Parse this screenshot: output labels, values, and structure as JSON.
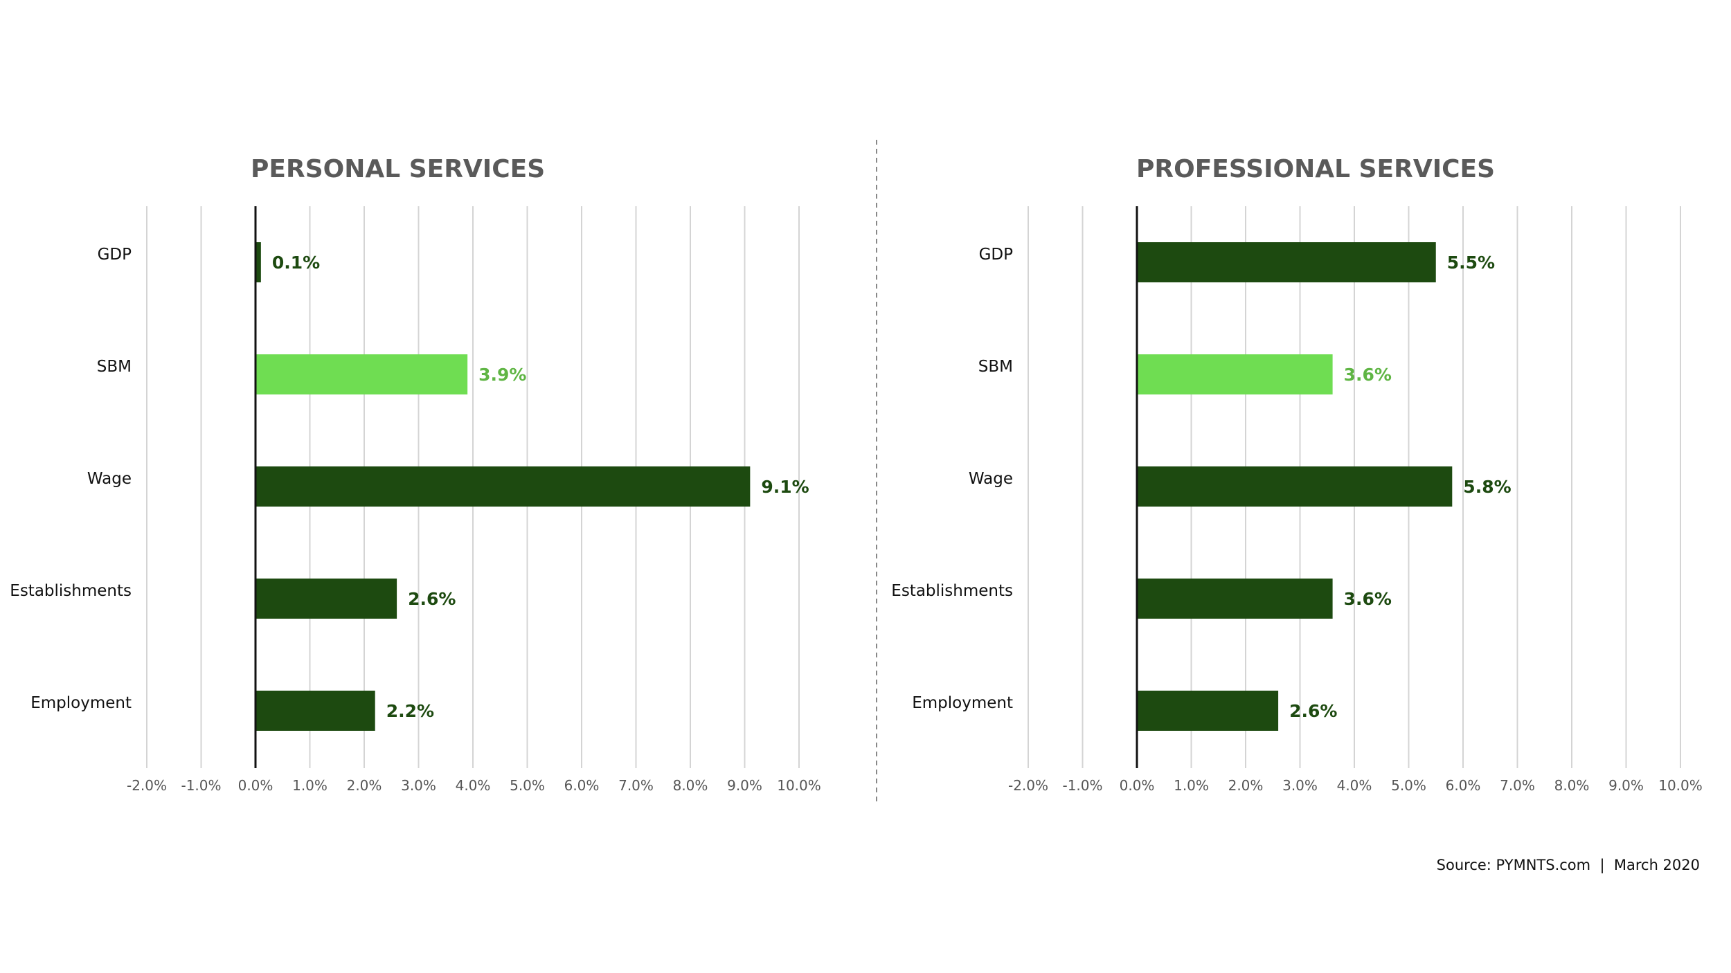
{
  "chart_data": [
    {
      "type": "bar",
      "orientation": "horizontal",
      "title": "PERSONAL SERVICES",
      "categories": [
        "GDP",
        "SBM",
        "Wage",
        "Establishments",
        "Employment"
      ],
      "values": [
        0.1,
        3.9,
        9.1,
        2.6,
        2.2
      ],
      "value_labels": [
        "0.1%",
        "3.9%",
        "9.1%",
        "2.6%",
        "2.2%"
      ],
      "xlim": [
        -2.0,
        10.0
      ],
      "xticks": [
        -2,
        -1,
        0,
        1,
        2,
        3,
        4,
        5,
        6,
        7,
        8,
        9,
        10
      ],
      "xtick_labels": [
        "-2.0%",
        "-1.0%",
        "0.0%",
        "1.0%",
        "2.0%",
        "3.0%",
        "4.0%",
        "5.0%",
        "6.0%",
        "7.0%",
        "8.0%",
        "9.0%",
        "10.0%"
      ],
      "grid": true,
      "highlight_category": "SBM"
    },
    {
      "type": "bar",
      "orientation": "horizontal",
      "title": "PROFESSIONAL SERVICES",
      "categories": [
        "GDP",
        "SBM",
        "Wage",
        "Establishments",
        "Employment"
      ],
      "values": [
        5.5,
        3.6,
        5.8,
        3.6,
        2.6
      ],
      "value_labels": [
        "5.5%",
        "3.6%",
        "5.8%",
        "3.6%",
        "2.6%"
      ],
      "xlim": [
        -2.0,
        10.0
      ],
      "xticks": [
        -2,
        -1,
        0,
        1,
        2,
        3,
        4,
        5,
        6,
        7,
        8,
        9,
        10
      ],
      "xtick_labels": [
        "-2.0%",
        "-1.0%",
        "0.0%",
        "1.0%",
        "2.0%",
        "3.0%",
        "4.0%",
        "5.0%",
        "6.0%",
        "7.0%",
        "8.0%",
        "9.0%",
        "10.0%"
      ],
      "grid": true,
      "highlight_category": "SBM"
    }
  ],
  "colors": {
    "bar": "#1d4a10",
    "highlight_bar": "#6fdd52",
    "value_label": "#1d4a10",
    "highlight_value_label": "#5fb544",
    "gridline": "#d4d4d4",
    "zero_axis": "#111111",
    "divider": "#888888",
    "title": "#5a5a5a"
  },
  "footer": {
    "source": "Source: PYMNTS.com  |  March 2020"
  }
}
